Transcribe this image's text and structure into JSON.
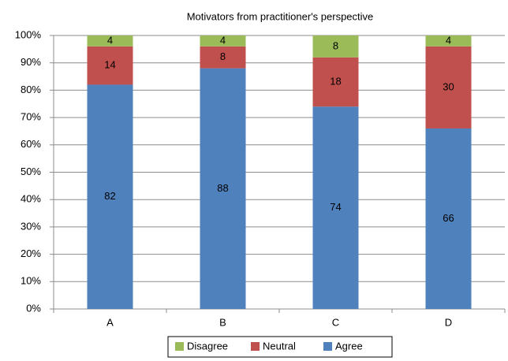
{
  "chart_data": {
    "type": "stacked_bar",
    "title": "Motivators from practitioner's perspective",
    "categories": [
      "A",
      "B",
      "C",
      "D"
    ],
    "series": [
      {
        "name": "Agree",
        "color": "#4f81bd",
        "values": [
          82,
          88,
          74,
          66
        ]
      },
      {
        "name": "Neutral",
        "color": "#c0504d",
        "values": [
          14,
          8,
          18,
          30
        ]
      },
      {
        "name": "Disagree",
        "color": "#9bbb59",
        "values": [
          4,
          4,
          8,
          4
        ]
      }
    ],
    "ylim": [
      0,
      100
    ],
    "yticks": [
      {
        "value": 0,
        "label": "0%"
      },
      {
        "value": 10,
        "label": "10%"
      },
      {
        "value": 20,
        "label": "20%"
      },
      {
        "value": 30,
        "label": "30%"
      },
      {
        "value": 40,
        "label": "40%"
      },
      {
        "value": 50,
        "label": "50%"
      },
      {
        "value": 60,
        "label": "60%"
      },
      {
        "value": 70,
        "label": "70%"
      },
      {
        "value": 80,
        "label": "80%"
      },
      {
        "value": 90,
        "label": "90%"
      },
      {
        "value": 100,
        "label": "100%"
      }
    ],
    "grid": true,
    "legend": "bottom"
  }
}
